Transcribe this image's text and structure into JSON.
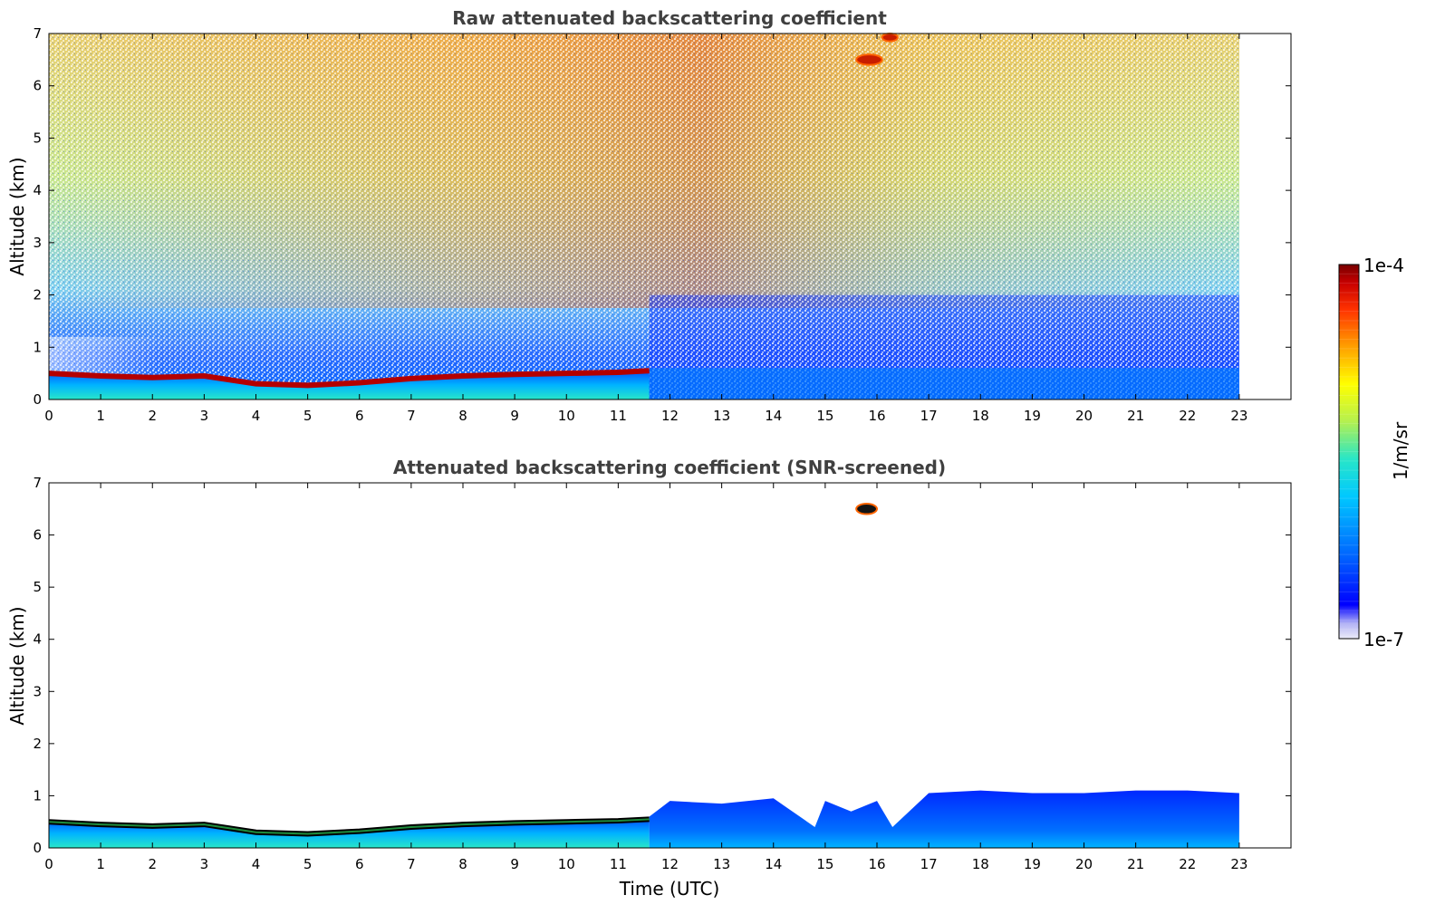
{
  "chart_data": [
    {
      "type": "heatmap",
      "title": "Raw attenuated backscattering coefficient",
      "xlabel": "",
      "ylabel": "Altitude (km)",
      "xlim": [
        0,
        24
      ],
      "ylim": [
        0,
        7
      ],
      "x_ticks": [
        "0",
        "1",
        "2",
        "3",
        "4",
        "5",
        "6",
        "7",
        "8",
        "9",
        "10",
        "11",
        "12",
        "13",
        "14",
        "15",
        "16",
        "17",
        "18",
        "19",
        "20",
        "21",
        "22",
        "23"
      ],
      "y_ticks": [
        "0",
        "1",
        "2",
        "3",
        "4",
        "5",
        "6",
        "7"
      ],
      "data_end_time": 23,
      "features": [
        {
          "name": "aerosol layer top",
          "x": [
            0,
            1,
            2,
            3,
            4,
            5,
            6,
            7,
            8,
            9,
            10,
            11,
            11.6
          ],
          "y": [
            0.5,
            0.45,
            0.42,
            0.45,
            0.3,
            0.27,
            0.32,
            0.4,
            0.45,
            0.48,
            0.5,
            0.52,
            0.55
          ]
        },
        {
          "name": "cloud",
          "x_range": [
            15.6,
            16.1
          ],
          "y_range": [
            6.4,
            6.6
          ]
        },
        {
          "name": "cloud",
          "x_range": [
            16.1,
            16.4
          ],
          "y_range": [
            6.85,
            7.0
          ]
        }
      ],
      "grid": false
    },
    {
      "type": "heatmap",
      "title": "Attenuated backscattering coefficient (SNR-screened)",
      "xlabel": "Time (UTC)",
      "ylabel": "Altitude (km)",
      "xlim": [
        0,
        24
      ],
      "ylim": [
        0,
        7
      ],
      "x_ticks": [
        "0",
        "1",
        "2",
        "3",
        "4",
        "5",
        "6",
        "7",
        "8",
        "9",
        "10",
        "11",
        "12",
        "13",
        "14",
        "15",
        "16",
        "17",
        "18",
        "19",
        "20",
        "21",
        "22",
        "23"
      ],
      "y_ticks": [
        "0",
        "1",
        "2",
        "3",
        "4",
        "5",
        "6",
        "7"
      ],
      "data_end_time": 23,
      "features": [
        {
          "name": "aerosol layer top",
          "x": [
            0,
            1,
            2,
            3,
            4,
            5,
            6,
            7,
            8,
            9,
            10,
            11,
            11.6
          ],
          "y": [
            0.5,
            0.45,
            0.42,
            0.45,
            0.3,
            0.27,
            0.32,
            0.4,
            0.45,
            0.48,
            0.5,
            0.52,
            0.55
          ]
        },
        {
          "name": "boundary layer top",
          "x": [
            11.6,
            12,
            13,
            14,
            14.8,
            15,
            15.5,
            16,
            16.3,
            17,
            18,
            19,
            20,
            21,
            22,
            23
          ],
          "y": [
            0.6,
            0.9,
            0.85,
            0.95,
            0.4,
            0.9,
            0.7,
            0.9,
            0.4,
            1.05,
            1.1,
            1.05,
            1.05,
            1.1,
            1.1,
            1.05
          ]
        },
        {
          "name": "cloud",
          "x_range": [
            15.6,
            16.0
          ],
          "y_range": [
            6.4,
            6.6
          ]
        }
      ],
      "grid": false
    }
  ],
  "colorbar": {
    "min_label": "1e-7",
    "max_label": "1e-4",
    "label": "1/m/sr",
    "scale": "log",
    "colormap": [
      "#ebebf8",
      "#b4b4f5",
      "#0000ff",
      "#0064ff",
      "#00c8ff",
      "#28e6c8",
      "#b4f050",
      "#ffff00",
      "#ffa000",
      "#ff3200",
      "#c80000",
      "#780000"
    ]
  }
}
